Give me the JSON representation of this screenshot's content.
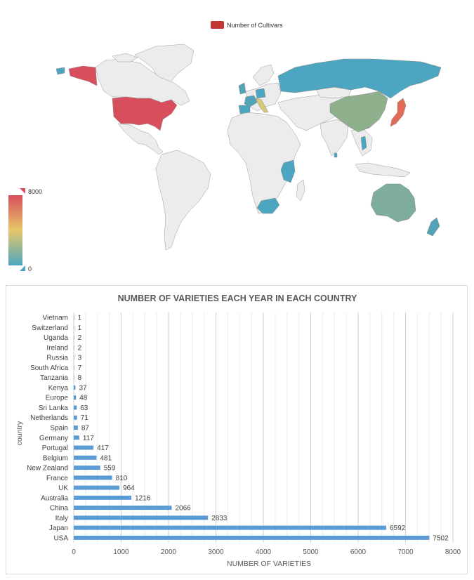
{
  "map_legend": {
    "series_label": "Number of Cultivars",
    "series_color": "#c23531",
    "scale_max_label": "8000",
    "scale_min_label": "0",
    "color_low": "#4da6c1",
    "color_mid": "#e6c769",
    "color_high": "#d94e5d"
  },
  "chart_data": [
    {
      "type": "map",
      "series_name": "Number of Cultivars",
      "visual_range": [
        0,
        8000
      ],
      "regions": [
        {
          "name": "USA",
          "value": 7502
        },
        {
          "name": "Japan",
          "value": 6592
        },
        {
          "name": "Italy",
          "value": 2833
        },
        {
          "name": "China",
          "value": 2066
        },
        {
          "name": "Australia",
          "value": 1216
        },
        {
          "name": "UK",
          "value": 964
        },
        {
          "name": "France",
          "value": 810
        },
        {
          "name": "New Zealand",
          "value": 559
        },
        {
          "name": "Russia",
          "value": 3
        },
        {
          "name": "Tanzania",
          "value": 8
        },
        {
          "name": "South Africa",
          "value": 7
        },
        {
          "name": "Kenya",
          "value": 37
        },
        {
          "name": "Vietnam",
          "value": 1
        },
        {
          "name": "Sri Lanka",
          "value": 63
        }
      ]
    },
    {
      "type": "bar",
      "orientation": "horizontal",
      "title": "NUMBER OF VARIETIES EACH YEAR IN EACH COUNTRY",
      "xlabel": "NUMBER OF VARIETIES",
      "ylabel": "country",
      "xlim": [
        0,
        8000
      ],
      "x_ticks": [
        0,
        1000,
        2000,
        3000,
        4000,
        5000,
        6000,
        7000,
        8000
      ],
      "bar_color": "#5b9bd5",
      "grid": true,
      "categories": [
        "Vietnam",
        "Switzerland",
        "Uganda",
        "Ireland",
        "Russia",
        "South Africa",
        "Tanzania",
        "Kenya",
        "Europe",
        "Sri Lanka",
        "Netherlands",
        "Spain",
        "Germany",
        "Portugal",
        "Belgium",
        "New Zealand",
        "France",
        "UK",
        "Australia",
        "China",
        "Italy",
        "Japan",
        "USA"
      ],
      "values": [
        1,
        1,
        2,
        2,
        3,
        7,
        8,
        37,
        48,
        63,
        71,
        87,
        117,
        417,
        481,
        559,
        810,
        964,
        1216,
        2066,
        2833,
        6592,
        7502
      ]
    }
  ]
}
